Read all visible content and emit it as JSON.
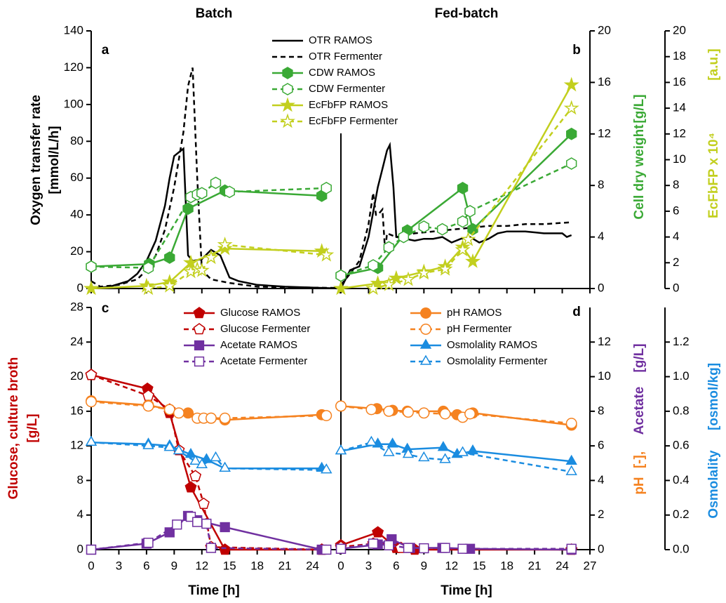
{
  "columns": [
    "Batch",
    "Fed-batch"
  ],
  "x_label": "Time   [h]",
  "xlim": [
    0,
    27
  ],
  "xticks": [
    0,
    3,
    6,
    9,
    12,
    15,
    18,
    21,
    24,
    27
  ],
  "chart_data": [
    {
      "type": "line",
      "panel_labels": [
        "a",
        "b"
      ],
      "ylabel": [
        "Oxygen transfer rate",
        "[mmol/L/h]"
      ],
      "ylabel_colors": [
        "#000000",
        "#000000"
      ],
      "ylim": [
        0,
        140
      ],
      "yticks": [
        0,
        20,
        40,
        60,
        80,
        100,
        120,
        140
      ],
      "y2label": [
        "Cell dry weight",
        "[g/L]"
      ],
      "y2label_colors": [
        "#3aa935",
        "#3aa935"
      ],
      "y2lim": [
        0,
        20
      ],
      "y2ticks": [
        0,
        4,
        8,
        12,
        16,
        20
      ],
      "y3label": [
        "EcFbFP x 10⁴",
        "[a.u.]"
      ],
      "y3label_colors": [
        "#c2cf1e",
        "#c2cf1e"
      ],
      "y3lim": [
        0,
        20
      ],
      "y3ticks": [
        0,
        2,
        4,
        6,
        8,
        10,
        12,
        14,
        16,
        18,
        20
      ],
      "series": [
        {
          "name": "OTR RAMOS",
          "color": "#000000",
          "dashed": false,
          "marker": "none",
          "filled": true,
          "axis": "y",
          "batch": {
            "x": [
              0,
              2,
              4,
              5,
              6,
              7,
              8,
              8.5,
              9,
              9.5,
              10,
              10.5,
              11,
              12,
              13,
              14,
              15,
              16,
              18,
              21,
              27
            ],
            "values": [
              0,
              1,
              4,
              8,
              15,
              26,
              45,
              60,
              72,
              74,
              76,
              18,
              15,
              16,
              21,
              18,
              6,
              4,
              2,
              1,
              0
            ]
          },
          "fed_batch": {
            "x": [
              0,
              0.5,
              1,
              2,
              3,
              4,
              4.5,
              5,
              5.3,
              5.7,
              6,
              7,
              8,
              9,
              10,
              11,
              12,
              13,
              14,
              15,
              16,
              17,
              18,
              20,
              22,
              24,
              24.5,
              25
            ],
            "values": [
              0,
              5,
              10,
              12,
              28,
              55,
              65,
              75,
              78,
              55,
              28,
              27,
              26,
              27,
              27,
              28,
              25,
              27,
              28,
              25,
              27,
              30,
              31,
              31,
              30,
              30,
              28,
              29
            ]
          }
        },
        {
          "name": "OTR Fermenter",
          "color": "#000000",
          "dashed": true,
          "marker": "none",
          "filled": true,
          "axis": "y",
          "batch": {
            "x": [
              0,
              1,
              3,
              5,
              6,
              7,
              8,
              9,
              10,
              10.5,
              11,
              11.5,
              12,
              13,
              15,
              18,
              24,
              27
            ],
            "values": [
              4,
              1,
              2,
              5,
              10,
              18,
              32,
              55,
              85,
              110,
              120,
              60,
              10,
              5,
              3,
              1,
              0.5,
              0.3
            ]
          },
          "fed_batch": {
            "x": [
              0,
              1,
              2,
              3,
              3.5,
              3.8,
              4,
              4.5,
              4.8,
              5,
              6,
              8,
              10,
              12,
              14,
              16,
              18,
              20,
              22,
              25
            ],
            "values": [
              2,
              8,
              15,
              35,
              52,
              40,
              40,
              43,
              20,
              30,
              28,
              30,
              31,
              32,
              33,
              34,
              34,
              35,
              35,
              36
            ]
          }
        },
        {
          "name": "CDW RAMOS",
          "color": "#3aa935",
          "dashed": false,
          "marker": "hexagon",
          "filled": true,
          "axis": "y2",
          "batch": {
            "x": [
              0,
              6.3,
              8.5,
              10.5,
              14.5,
              25
            ],
            "values": [
              1.7,
              1.9,
              2.4,
              6.2,
              7.6,
              7.2
            ]
          },
          "fed_batch": {
            "x": [
              0,
              4,
              7.2,
              13.2,
              14.3,
              25
            ],
            "values": [
              1.0,
              1.6,
              4.5,
              7.8,
              4.6,
              12.0
            ]
          }
        },
        {
          "name": "CDW Fermenter",
          "color": "#3aa935",
          "dashed": true,
          "marker": "hexagon",
          "filled": false,
          "axis": "y2",
          "batch": {
            "x": [
              0,
              6.2,
              10.8,
              11.5,
              12,
              13.5,
              15,
              25.5
            ],
            "values": [
              1.7,
              1.6,
              7.1,
              7.3,
              7.4,
              8.2,
              7.5,
              7.8
            ]
          },
          "fed_batch": {
            "x": [
              0,
              3.5,
              5.2,
              6.8,
              9,
              11,
              13.2,
              14,
              25
            ],
            "values": [
              1.0,
              1.8,
              3.2,
              4.0,
              4.8,
              4.6,
              5.2,
              6.0,
              9.7
            ]
          }
        },
        {
          "name": "EcFbFP RAMOS",
          "color": "#c2cf1e",
          "dashed": false,
          "marker": "star",
          "filled": true,
          "axis": "y3",
          "batch": {
            "x": [
              0,
              6,
              8.5,
              10.8,
              14.5,
              25
            ],
            "values": [
              0,
              0.2,
              0.5,
              2.0,
              3.1,
              2.9
            ]
          },
          "fed_batch": {
            "x": [
              0,
              4,
              6,
              9,
              11.3,
              13.2,
              14.3,
              25
            ],
            "values": [
              0,
              0.4,
              0.8,
              1.3,
              1.7,
              3.2,
              2.1,
              15.8
            ]
          }
        },
        {
          "name": "EcFbFP Fermenter",
          "color": "#c2cf1e",
          "dashed": true,
          "marker": "star",
          "filled": false,
          "axis": "y3",
          "batch": {
            "x": [
              6.2,
              8.5,
              10.8,
              11.5,
              12,
              13,
              14.5,
              25.5
            ],
            "values": [
              0,
              0.2,
              1.3,
              1.5,
              1.4,
              2.4,
              3.4,
              2.6
            ]
          },
          "fed_batch": {
            "x": [
              3.5,
              5.2,
              7.3,
              9,
              11.3,
              13.2,
              13.8,
              25
            ],
            "values": [
              0,
              0.3,
              0.7,
              1.2,
              1.5,
              3.0,
              3.8,
              14.0
            ]
          }
        }
      ]
    },
    {
      "type": "line",
      "panel_labels": [
        "c",
        "d"
      ],
      "ylabel": [
        "Glucose, culture broth",
        "[g/L]"
      ],
      "ylabel_colors": [
        "#c00000",
        "#c00000"
      ],
      "ylim": [
        0,
        28
      ],
      "yticks": [
        0,
        4,
        8,
        12,
        16,
        20,
        24,
        28
      ],
      "y2label": [
        "pH",
        "[-],",
        "Acetate",
        "[g/L]"
      ],
      "y2label_colors": [
        "#f58220",
        "#f58220",
        "#7030a0",
        "#7030a0"
      ],
      "y2lim": [
        0,
        14
      ],
      "y2ticks": [
        0,
        2,
        4,
        6,
        8,
        10,
        12
      ],
      "y3label": [
        "Osmolality",
        "[osmol/kg]"
      ],
      "y3label_colors": [
        "#1a8ce0",
        "#1a8ce0"
      ],
      "y3lim": [
        0,
        1.4
      ],
      "y3ticks": [
        {
          "value": 0,
          "label": "0.0"
        },
        0.2,
        0.4,
        0.6,
        0.8,
        {
          "value": 1,
          "label": "1.0"
        },
        1.2
      ],
      "series": [
        {
          "name": "Glucose RAMOS",
          "color": "#c00000",
          "dashed": false,
          "marker": "pentagon",
          "filled": true,
          "axis": "y",
          "batch": {
            "x": [
              0,
              6.1,
              8.5,
              10.8,
              14.5,
              25
            ],
            "values": [
              20.2,
              18.6,
              15.8,
              7.2,
              0,
              0
            ]
          },
          "fed_batch": {
            "x": [
              0,
              4,
              6,
              8,
              25
            ],
            "values": [
              0.5,
              2.0,
              0.2,
              0,
              0
            ]
          }
        },
        {
          "name": "Glucose Fermenter",
          "color": "#c00000",
          "dashed": true,
          "marker": "pentagon",
          "filled": false,
          "axis": "y",
          "batch": {
            "x": [
              0,
              6.2,
              8.5,
              9.5,
              11.3,
              12.2,
              13,
              25
            ],
            "values": [
              20.2,
              17.8,
              16.2,
              11.5,
              8.5,
              5.3,
              0.3,
              0
            ]
          },
          "fed_batch": {
            "x": [
              0,
              3.5,
              5.2,
              6.5,
              25
            ],
            "values": [
              0.3,
              0.7,
              0.6,
              0.2,
              0
            ]
          }
        },
        {
          "name": "Acetate RAMOS",
          "color": "#7030a0",
          "dashed": false,
          "marker": "square",
          "filled": true,
          "axis": "y2",
          "batch": {
            "x": [
              0,
              6,
              8.5,
              10.5,
              11.5,
              14.5,
              25
            ],
            "values": [
              0,
              0.35,
              1.0,
              1.95,
              1.7,
              1.3,
              0
            ]
          },
          "fed_batch": {
            "x": [
              0,
              4,
              5.5,
              7.5,
              11,
              14,
              25
            ],
            "values": [
              0.05,
              0.3,
              0.6,
              0.1,
              0.1,
              0.05,
              0
            ]
          }
        },
        {
          "name": "Acetate Fermenter",
          "color": "#7030a0",
          "dashed": true,
          "marker": "square",
          "filled": false,
          "axis": "y2",
          "batch": {
            "x": [
              0,
              6.2,
              9.3,
              10.8,
              11.5,
              12.5,
              13,
              25.5
            ],
            "values": [
              0,
              0.4,
              1.45,
              1.9,
              1.6,
              1.5,
              0.1,
              0
            ]
          },
          "fed_batch": {
            "x": [
              0,
              3.5,
              5.2,
              7.3,
              9,
              11.3,
              13.2,
              25
            ],
            "values": [
              0.05,
              0.35,
              0.25,
              0.1,
              0.08,
              0.1,
              0.05,
              0.05
            ]
          }
        },
        {
          "name": "pH RAMOS",
          "color": "#f58220",
          "dashed": false,
          "marker": "circle",
          "filled": true,
          "axis": "y2",
          "batch": {
            "x": [
              0,
              6.2,
              8.5,
              10.5,
              13,
              14.5,
              25
            ],
            "values": [
              8.6,
              8.35,
              8.1,
              7.9,
              7.6,
              7.5,
              7.8
            ]
          },
          "fed_batch": {
            "x": [
              0,
              3.9,
              5.6,
              7.2,
              11.1,
              12.6,
              14.3,
              25
            ],
            "values": [
              8.3,
              8.15,
              8.05,
              8.0,
              8.0,
              7.8,
              7.9,
              7.2
            ]
          }
        },
        {
          "name": "pH Fermenter",
          "color": "#f58220",
          "dashed": true,
          "marker": "circle",
          "filled": false,
          "axis": "y2",
          "batch": {
            "x": [
              0,
              6.2,
              8.5,
              9.5,
              11.5,
              12.2,
              13,
              14.5,
              25.5
            ],
            "values": [
              8.55,
              8.3,
              8.1,
              7.9,
              7.6,
              7.6,
              7.6,
              7.6,
              7.75
            ]
          },
          "fed_batch": {
            "x": [
              0,
              3.3,
              5.2,
              7.3,
              9,
              11.3,
              13.2,
              14,
              25
            ],
            "values": [
              8.3,
              8.1,
              8.0,
              7.95,
              7.9,
              7.85,
              7.65,
              7.85,
              7.3
            ]
          }
        },
        {
          "name": "Osmolality RAMOS",
          "color": "#1a8ce0",
          "dashed": false,
          "marker": "triangle",
          "filled": true,
          "axis": "y3",
          "batch": {
            "x": [
              0,
              6.2,
              8.5,
              10.8,
              12.5,
              14.5,
              25
            ],
            "values": [
              0.62,
              0.61,
              0.6,
              0.55,
              0.52,
              0.47,
              0.47
            ]
          },
          "fed_batch": {
            "x": [
              0,
              4,
              5.6,
              7.2,
              11.1,
              12.6,
              14.3,
              25
            ],
            "values": [
              0.57,
              0.61,
              0.61,
              0.58,
              0.59,
              0.55,
              0.57,
              0.51
            ]
          }
        },
        {
          "name": "Osmolality Fermenter",
          "color": "#1a8ce0",
          "dashed": true,
          "marker": "triangle",
          "filled": false,
          "axis": "y3",
          "batch": {
            "x": [
              0,
              6.2,
              8.5,
              9.5,
              11.3,
              12,
              13.5,
              14.5,
              25.5
            ],
            "values": [
              0.62,
              0.6,
              0.59,
              0.57,
              0.51,
              0.49,
              0.53,
              0.47,
              0.46
            ]
          },
          "fed_batch": {
            "x": [
              0,
              3.3,
              5.2,
              7.3,
              9,
              11.3,
              13.2,
              25
            ],
            "values": [
              0.57,
              0.62,
              0.56,
              0.55,
              0.53,
              0.52,
              0.56,
              0.45
            ]
          }
        }
      ]
    }
  ]
}
